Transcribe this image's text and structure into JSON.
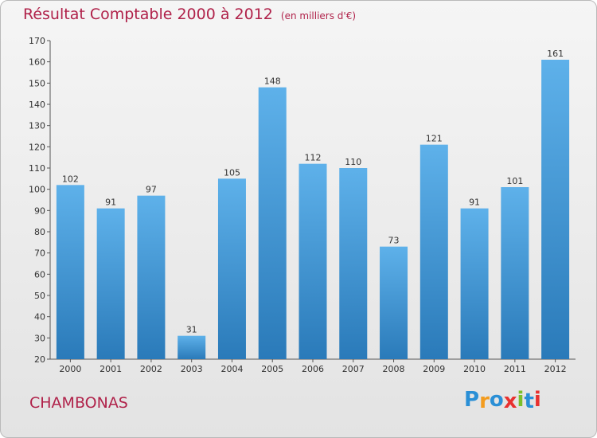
{
  "title": "Résultat Comptable 2000 à 2012",
  "subtitle": "(en milliers d'€)",
  "commune": "CHAMBONAS",
  "logo": {
    "letters": [
      "P",
      "r",
      "o",
      "x",
      "i",
      "t",
      "i"
    ],
    "colors": [
      "#2a8fd6",
      "#f39c1f",
      "#2a8fd6",
      "#e8312f",
      "#7bbf2a",
      "#2a8fd6",
      "#e8312f"
    ]
  },
  "colors": {
    "bar_top": "#5eb1ea",
    "bar_bottom": "#2a7ab9",
    "title": "#b0224a"
  },
  "chart_data": {
    "type": "bar",
    "title": "Résultat Comptable 2000 à 2012",
    "xlabel": "",
    "ylabel": "",
    "categories": [
      "2000",
      "2001",
      "2002",
      "2003",
      "2004",
      "2005",
      "2006",
      "2007",
      "2008",
      "2009",
      "2010",
      "2011",
      "2012"
    ],
    "values": [
      102,
      91,
      97,
      31,
      105,
      148,
      112,
      110,
      73,
      121,
      91,
      101,
      161
    ],
    "ylim": [
      20,
      170
    ],
    "yticks": [
      20,
      30,
      40,
      50,
      60,
      70,
      80,
      90,
      100,
      110,
      120,
      130,
      140,
      150,
      160,
      170
    ],
    "grid": false
  }
}
